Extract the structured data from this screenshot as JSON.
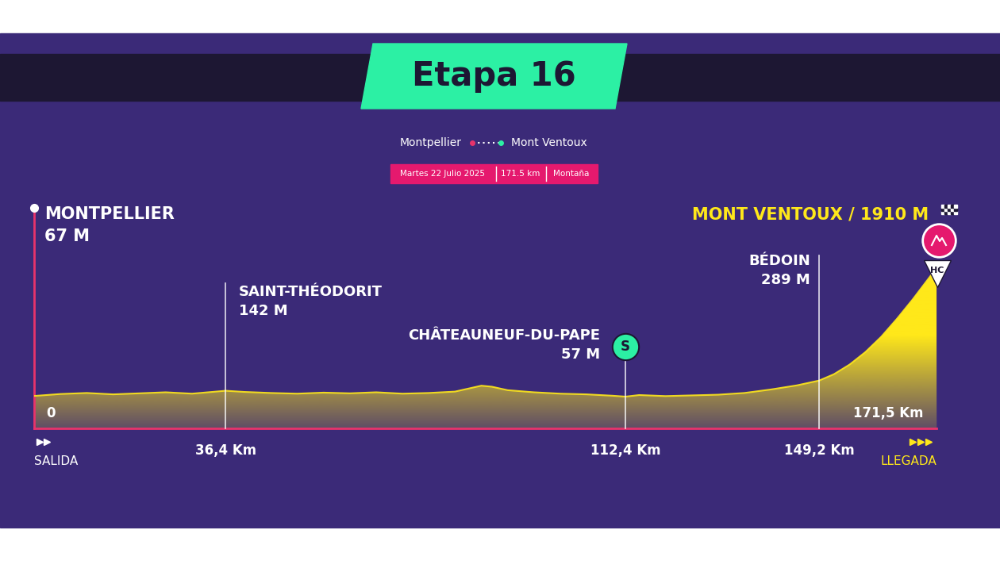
{
  "chart_data": {
    "type": "area",
    "title": "Etapa 16",
    "route": {
      "start": "Montpellier",
      "end": "Mont Ventoux"
    },
    "info": [
      "Martes 22 Julio 2025",
      "171.5 km",
      "Montaña"
    ],
    "x": [
      0,
      5,
      10,
      15,
      20,
      25,
      30,
      36.4,
      40,
      45,
      50,
      55,
      60,
      65,
      70,
      75,
      80,
      85,
      87,
      90,
      95,
      100,
      105,
      110,
      112.4,
      115,
      120,
      125,
      130,
      135,
      140,
      145,
      149.2,
      152,
      155,
      158,
      161,
      164,
      167,
      169,
      171.5
    ],
    "values": [
      67,
      95,
      110,
      90,
      105,
      120,
      100,
      142,
      125,
      110,
      100,
      115,
      105,
      120,
      100,
      110,
      130,
      215,
      200,
      150,
      120,
      100,
      90,
      70,
      57,
      80,
      65,
      75,
      85,
      110,
      160,
      220,
      289,
      380,
      520,
      700,
      920,
      1180,
      1460,
      1660,
      1910
    ],
    "color": "#ffe81a",
    "xlim": [
      0,
      171.5
    ],
    "ylim": [
      -400,
      2800
    ],
    "xticks": [
      {
        "value": 36.4,
        "label": "36,4 Km"
      },
      {
        "value": 112.4,
        "label": "112,4 Km"
      },
      {
        "value": 149.2,
        "label": "149,2 Km"
      }
    ],
    "tick_labels": "x",
    "grid": false,
    "start": {
      "name": "MONTPELLIER",
      "altitude_label": "67 M",
      "x": 0,
      "km_label": "0",
      "label": "SALIDA"
    },
    "finish": {
      "name": "MONT VENTOUX / 1910 M",
      "x": 171.5,
      "km_label": "171,5 Km",
      "label": "LLEGADA",
      "category": "HC"
    },
    "annotations": [
      {
        "x": 36.4,
        "name": "SAINT-THÉODORIT",
        "altitude_label": "142 M"
      },
      {
        "x": 112.4,
        "name": "CHÂTEAUNEUF-DU-PAPE",
        "altitude_label": "57 M",
        "sprint": "S"
      },
      {
        "x": 149.2,
        "name": "BÉDOIN",
        "altitude_label": "289 M"
      }
    ]
  }
}
